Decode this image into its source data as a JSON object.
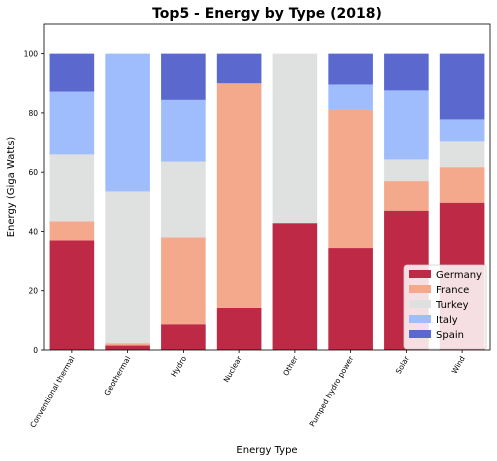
{
  "chart_data": {
    "type": "bar",
    "stacked": true,
    "title": "Top5 - Energy by Type (2018)",
    "xlabel": "Energy Type",
    "ylabel": "Energy (Giga Watts)",
    "ylim": [
      0,
      110
    ],
    "yticks": [
      0,
      20,
      40,
      60,
      80,
      100
    ],
    "grid": false,
    "legend_position": "lower-right",
    "categories": [
      "Conventional thermal",
      "Geothermal",
      "Hydro",
      "Nuclear",
      "Other",
      "Pumped hydro power",
      "Solar",
      "Wind"
    ],
    "series": [
      {
        "name": "Germany",
        "color": "#be2a45",
        "values": [
          37,
          1.5,
          8.7,
          14.2,
          42.8,
          34.4,
          47,
          49.7
        ]
      },
      {
        "name": "France",
        "color": "#f4a98d",
        "values": [
          6.4,
          0.8,
          29.3,
          75.8,
          0,
          46.6,
          10,
          12
        ]
      },
      {
        "name": "Turkey",
        "color": "#dfe0e0",
        "values": [
          22.6,
          51.2,
          25.6,
          0,
          57.2,
          0,
          7.3,
          8.7
        ]
      },
      {
        "name": "Italy",
        "color": "#9fbdfd",
        "values": [
          21.2,
          46.5,
          20.8,
          0,
          0,
          8.6,
          23.3,
          7.4
        ]
      },
      {
        "name": "Spain",
        "color": "#5b69cf",
        "values": [
          12.8,
          0,
          15.6,
          10,
          0,
          10.4,
          12.4,
          22.2
        ]
      }
    ]
  }
}
